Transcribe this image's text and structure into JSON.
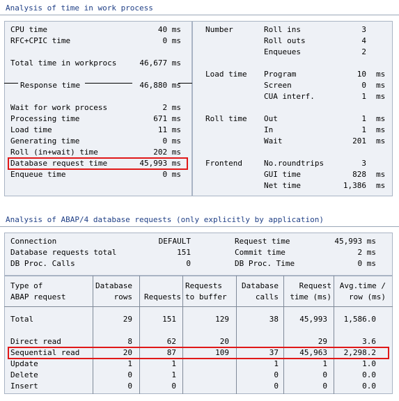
{
  "section1": {
    "title": "Analysis of time in work process",
    "left": {
      "cpu_time": {
        "label": "CPU time",
        "value": "40 ms"
      },
      "rfc_cpic": {
        "label": "RFC+CPIC time",
        "value": "0 ms"
      },
      "total_time": {
        "label": "Total time in workprocs",
        "value": "46,677 ms"
      },
      "response_time": {
        "label": "Response time",
        "value": "46,880 ms"
      },
      "wait_wp": {
        "label": "Wait for work process",
        "value": "2 ms"
      },
      "processing": {
        "label": "Processing time",
        "value": "671 ms"
      },
      "load": {
        "label": "Load time",
        "value": "11 ms"
      },
      "generating": {
        "label": "Generating time",
        "value": "0 ms"
      },
      "roll_in_wait": {
        "label": "Roll (in+wait) time",
        "value": "202 ms"
      },
      "db_request": {
        "label": "Database request time",
        "value": "45,993 ms"
      },
      "enqueue": {
        "label": "Enqueue time",
        "value": "0 ms"
      }
    },
    "right": {
      "number_label": "Number",
      "roll_ins": {
        "label": "Roll ins",
        "value": "3"
      },
      "roll_outs": {
        "label": "Roll outs",
        "value": "4"
      },
      "enqueues": {
        "label": "Enqueues",
        "value": "2"
      },
      "load_time_label": "Load time",
      "program": {
        "label": "Program",
        "value": "10",
        "unit": "ms"
      },
      "screen": {
        "label": "Screen",
        "value": "0",
        "unit": "ms"
      },
      "cua": {
        "label": "CUA interf.",
        "value": "1",
        "unit": "ms"
      },
      "roll_time_label": "Roll time",
      "out": {
        "label": "Out",
        "value": "1",
        "unit": "ms"
      },
      "in": {
        "label": "In",
        "value": "1",
        "unit": "ms"
      },
      "wait": {
        "label": "Wait",
        "value": "201",
        "unit": "ms"
      },
      "frontend_label": "Frontend",
      "roundtrips": {
        "label": "No.roundtrips",
        "value": "3"
      },
      "gui_time": {
        "label": "GUI time",
        "value": "828",
        "unit": "ms"
      },
      "net_time": {
        "label": "Net time",
        "value": "1,386",
        "unit": "ms"
      }
    }
  },
  "section2": {
    "title": "Analysis of ABAP/4 database requests (only explicitly by application)",
    "summary": {
      "connection": {
        "label": "Connection",
        "value": "DEFAULT"
      },
      "db_requests_total": {
        "label": "Database requests total",
        "value": "151"
      },
      "db_proc_calls": {
        "label": "DB Proc. Calls",
        "value": "0"
      },
      "request_time": {
        "label": "Request time",
        "value": "45,993 ms"
      },
      "commit_time": {
        "label": "Commit time",
        "value": "2 ms"
      },
      "db_proc_time": {
        "label": "DB Proc. Time",
        "value": "0 ms"
      }
    },
    "headers": {
      "type": [
        "Type of",
        "ABAP request"
      ],
      "db_rows": [
        "Database",
        "rows"
      ],
      "requests": [
        "",
        "Requests"
      ],
      "req_buffer": [
        "Requests",
        "to buffer"
      ],
      "db_calls": [
        "Database",
        "calls"
      ],
      "req_time": [
        "Request",
        "time (ms)"
      ],
      "avg_time": [
        "Avg.time /",
        "row (ms)"
      ]
    },
    "rows": [
      {
        "type": "Total",
        "db_rows": "29",
        "requests": "151",
        "to_buffer": "129",
        "calls": "38",
        "time": "45,993",
        "avg": "1,586.0"
      },
      {
        "type": "Direct read",
        "db_rows": "8",
        "requests": "62",
        "to_buffer": "20",
        "calls": "",
        "time": "29",
        "avg": "3.6"
      },
      {
        "type": "Sequential read",
        "db_rows": "20",
        "requests": "87",
        "to_buffer": "109",
        "calls": "37",
        "time": "45,963",
        "avg": "2,298.2"
      },
      {
        "type": "Update",
        "db_rows": "1",
        "requests": "1",
        "to_buffer": "",
        "calls": "1",
        "time": "1",
        "avg": "1.0"
      },
      {
        "type": "Delete",
        "db_rows": "0",
        "requests": "1",
        "to_buffer": "",
        "calls": "0",
        "time": "0",
        "avg": "0.0"
      },
      {
        "type": "Insert",
        "db_rows": "0",
        "requests": "0",
        "to_buffer": "",
        "calls": "0",
        "time": "0",
        "avg": "0.0"
      }
    ]
  }
}
